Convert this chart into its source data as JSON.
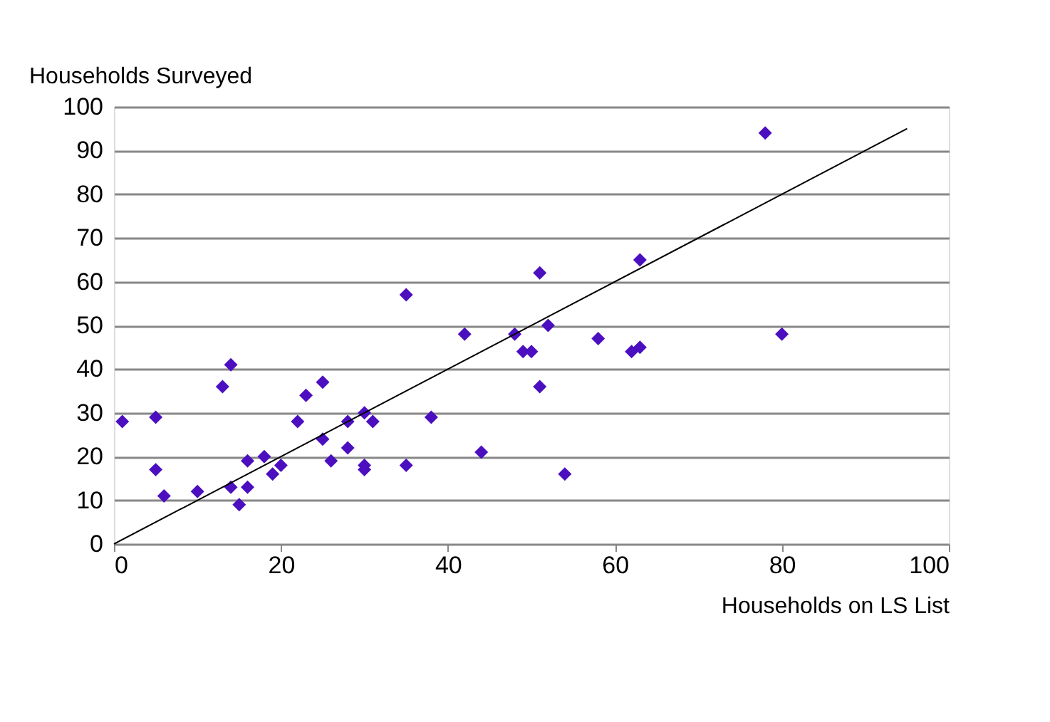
{
  "chart_data": {
    "type": "scatter",
    "xlabel": "Households on LS List",
    "ylabel": "Households Surveyed",
    "xlim": [
      0,
      100
    ],
    "xticks": [
      0,
      20,
      40,
      60,
      80,
      100
    ],
    "ylim": [
      0,
      100
    ],
    "yticks": [
      0,
      10,
      20,
      30,
      40,
      50,
      60,
      70,
      80,
      90,
      100
    ],
    "grid": "y",
    "series": [
      {
        "color": "#4b0fc0",
        "marker": "diamond",
        "x": [
          1,
          5,
          5,
          6,
          10,
          13,
          14,
          14,
          15,
          16,
          16,
          18,
          19,
          20,
          22,
          23,
          25,
          25,
          26,
          28,
          28,
          30,
          30,
          30,
          31,
          35,
          35,
          38,
          42,
          44,
          48,
          49,
          50,
          51,
          51,
          52,
          54,
          58,
          62,
          63,
          63,
          78,
          80
        ],
        "values": [
          28,
          29,
          17,
          11,
          12,
          36,
          41,
          13,
          9,
          19,
          13,
          20,
          16,
          18,
          28,
          34,
          37,
          24,
          19,
          28,
          22,
          30,
          18,
          17,
          28,
          57,
          18,
          29,
          48,
          21,
          48,
          44,
          44,
          62,
          36,
          50,
          16,
          47,
          44,
          65,
          45,
          94,
          48
        ]
      },
      {
        "type": "line",
        "color": "#000000",
        "x": [
          0,
          95
        ],
        "values": [
          0,
          95
        ]
      }
    ]
  }
}
